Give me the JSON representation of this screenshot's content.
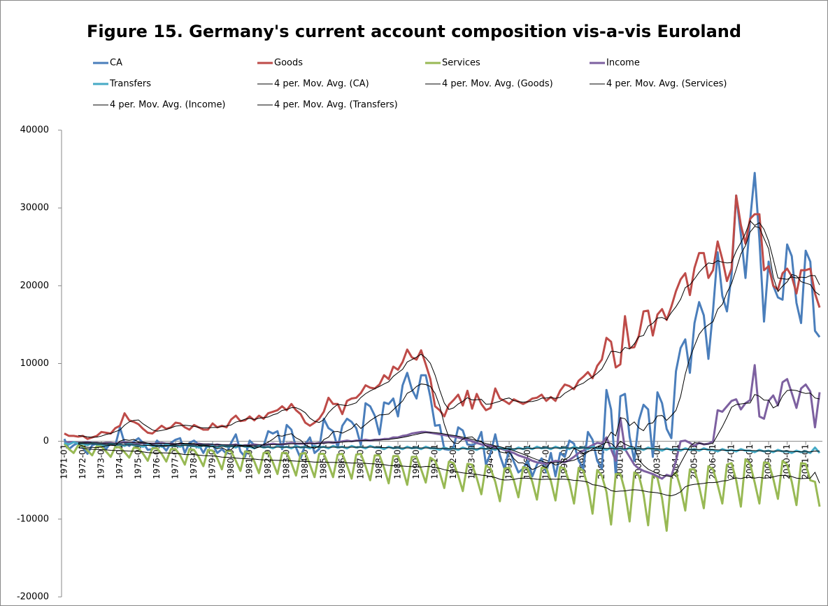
{
  "chart_data": {
    "type": "line",
    "title": "Figure 15. Germany's current account composition vis-a-vis Euroland",
    "categories": [
      "1971-01",
      null,
      null,
      null,
      "1972-01",
      null,
      null,
      null,
      "1973-01",
      null,
      null,
      null,
      "1974-01",
      null,
      null,
      null,
      "1975-01",
      null,
      null,
      null,
      "1976-01",
      null,
      null,
      null,
      "1977-01",
      null,
      null,
      null,
      "1978-01",
      null,
      null,
      null,
      "1979-01",
      null,
      null,
      null,
      "1980-01",
      null,
      null,
      null,
      "1981-01",
      null,
      null,
      null,
      "1982-01",
      null,
      null,
      null,
      "1983-01",
      null,
      null,
      null,
      "1984-01",
      null,
      null,
      null,
      "1985-01",
      null,
      null,
      null,
      "1986-01",
      null,
      null,
      null,
      "1987-01",
      null,
      null,
      null,
      "1988-01",
      null,
      null,
      null,
      "1989-01",
      null,
      null,
      null,
      "1990-01",
      null,
      null,
      null,
      "1991-01",
      null,
      null,
      null,
      "1992-01",
      null,
      null,
      null,
      "1993-01",
      null,
      null,
      null,
      "1994-01",
      null,
      null,
      null,
      "1995-01",
      null,
      null,
      null,
      "1996-01",
      null,
      null,
      null,
      "1997-01",
      null,
      null,
      null,
      "1998-01",
      null,
      null,
      null,
      "1999-01",
      null,
      null,
      null,
      "2000-01",
      null,
      null,
      null,
      "2001-01",
      null,
      null,
      null,
      "2002-01",
      null,
      null,
      null,
      "2003-01",
      null,
      null,
      null,
      "2004-01",
      null,
      null,
      null,
      "2005-01",
      null,
      null,
      null,
      "2006-01",
      null,
      null,
      null,
      "2007-01",
      null,
      null,
      null,
      "2008-01",
      null,
      null,
      null,
      "2009-01",
      null,
      null,
      null,
      "2010-01",
      null,
      null,
      null,
      "2011-01",
      null,
      null,
      null
    ],
    "series": [
      {
        "name": "CA",
        "color": "#4a7ebb",
        "values": [
          300,
          -1000,
          -500,
          -200,
          -800,
          -1600,
          -500,
          -300,
          -500,
          -1000,
          -200,
          -500,
          1800,
          -200,
          -600,
          0,
          400,
          -200,
          -1100,
          -1000,
          100,
          -500,
          -1200,
          -200,
          200,
          400,
          -1500,
          -200,
          100,
          -400,
          -1500,
          -400,
          -400,
          -1500,
          -1000,
          -1600,
          -200,
          900,
          -1300,
          -2000,
          100,
          -500,
          -600,
          -600,
          1300,
          1000,
          1300,
          -1000,
          2100,
          1500,
          -800,
          -2200,
          -400,
          500,
          -1500,
          -1000,
          2900,
          1700,
          1300,
          -800,
          2000,
          2900,
          2500,
          1700,
          -500,
          4900,
          4500,
          3300,
          900,
          5000,
          4800,
          5500,
          3200,
          7200,
          8800,
          6700,
          5500,
          8500,
          8500,
          5700,
          2000,
          2100,
          -1000,
          -1100,
          -800,
          1800,
          1400,
          -400,
          -500,
          -200,
          1200,
          -3000,
          -1500,
          900,
          -1800,
          -3500,
          -1000,
          -2600,
          -4000,
          -3500,
          -2500,
          -4500,
          -3000,
          -2200,
          -4000,
          -1500,
          -4500,
          -1500,
          -2000,
          100,
          -300,
          -2500,
          -3500,
          1200,
          200,
          -2500,
          -3500,
          6600,
          4100,
          -4400,
          5800,
          6100,
          600,
          -2500,
          2700,
          4700,
          4100,
          -2000,
          6300,
          4900,
          1600,
          400,
          9000,
          12000,
          13100,
          8800,
          15200,
          17900,
          16200,
          10600,
          16800,
          24300,
          18700,
          16700,
          21400,
          31600,
          26600,
          21000,
          28400,
          34500,
          26000,
          15400,
          23100,
          20000,
          18500,
          18200,
          25300,
          23800,
          17800,
          15200,
          24500,
          23100,
          14200,
          13400
        ]
      },
      {
        "name": "Goods",
        "color": "#be4b48",
        "values": [
          1000,
          700,
          700,
          600,
          700,
          300,
          500,
          700,
          1200,
          1100,
          1000,
          1700,
          2000,
          3600,
          2700,
          2500,
          2200,
          1600,
          1100,
          1000,
          1500,
          2000,
          1600,
          1800,
          2400,
          2300,
          1800,
          1500,
          2100,
          1800,
          1500,
          1500,
          2300,
          1800,
          2000,
          1800,
          2800,
          3300,
          2600,
          2700,
          3200,
          2700,
          3300,
          2900,
          3600,
          3800,
          4000,
          4500,
          4000,
          4800,
          4000,
          3500,
          2400,
          2000,
          2400,
          2900,
          3800,
          5600,
          4800,
          4800,
          3500,
          5200,
          5500,
          5600,
          6200,
          7200,
          6900,
          6800,
          7300,
          8500,
          8000,
          9600,
          9200,
          10200,
          11800,
          10800,
          10500,
          11700,
          9900,
          8000,
          4500,
          4000,
          3200,
          4700,
          5300,
          6000,
          4600,
          6500,
          4200,
          6100,
          4800,
          4000,
          4300,
          6800,
          5500,
          5200,
          4800,
          5400,
          5100,
          4800,
          5100,
          5500,
          5600,
          6000,
          5200,
          5700,
          5200,
          6500,
          7300,
          7100,
          6700,
          7800,
          8300,
          8900,
          8100,
          9700,
          10500,
          13300,
          12800,
          9500,
          9900,
          16100,
          12000,
          12100,
          13600,
          16700,
          16800,
          13600,
          16300,
          17000,
          15600,
          17300,
          19300,
          20800,
          21600,
          18800,
          22300,
          24200,
          24200,
          21000,
          22000,
          25700,
          23400,
          20600,
          22200,
          31600,
          27800,
          25400,
          28600,
          29200,
          29200,
          22000,
          22500,
          20000,
          19500,
          21600,
          22200,
          21200,
          19000,
          22000,
          22000,
          22200,
          19000,
          17200
        ]
      },
      {
        "name": "Services",
        "color": "#98b954",
        "values": [
          -300,
          -1000,
          -1500,
          -500,
          -600,
          -1200,
          -1800,
          -600,
          -700,
          -1300,
          -2000,
          -700,
          -800,
          -1400,
          -2100,
          -800,
          -900,
          -1600,
          -2500,
          -900,
          -900,
          -1600,
          -2600,
          -1000,
          -1000,
          -1800,
          -3000,
          -1000,
          -1100,
          -2000,
          -3200,
          -1100,
          -1200,
          -2200,
          -3600,
          -1200,
          -1300,
          -2500,
          -3800,
          -1300,
          -1400,
          -2600,
          -4100,
          -1500,
          -1400,
          -2700,
          -4200,
          -1500,
          -1500,
          -2800,
          -4400,
          -1600,
          -1500,
          -3000,
          -4600,
          -1600,
          -1600,
          -3000,
          -4600,
          -1700,
          -1600,
          -3100,
          -4800,
          -1700,
          -1600,
          -3200,
          -5000,
          -1800,
          -1800,
          -3400,
          -5400,
          -1900,
          -1900,
          -3500,
          -5600,
          -2000,
          -2000,
          -3600,
          -5300,
          -2100,
          -2500,
          -4000,
          -6000,
          -2600,
          -2800,
          -4400,
          -6400,
          -2900,
          -3000,
          -4700,
          -6800,
          -3100,
          -3500,
          -5200,
          -7700,
          -3500,
          -3400,
          -5000,
          -7200,
          -3300,
          -3500,
          -5200,
          -7500,
          -3400,
          -3400,
          -5100,
          -7600,
          -3300,
          -3500,
          -5300,
          -8000,
          -3400,
          -3800,
          -5800,
          -9300,
          -3700,
          -4400,
          -6500,
          -10700,
          -4200,
          -4200,
          -6400,
          -10300,
          -4000,
          -4400,
          -6800,
          -10800,
          -4200,
          -4700,
          -7300,
          -11500,
          -4500,
          -4000,
          -6000,
          -8900,
          -3600,
          -3600,
          -5800,
          -8600,
          -3200,
          -3600,
          -5600,
          -8000,
          -3000,
          -2800,
          -5000,
          -8400,
          -2300,
          -2900,
          -5300,
          -8000,
          -2700,
          -2800,
          -4800,
          -7400,
          -2500,
          -3000,
          -5200,
          -8200,
          -2800,
          -2900,
          -5000,
          -5200,
          -8400
        ]
      },
      {
        "name": "Income",
        "color": "#7d60a0",
        "values": [
          -200,
          -100,
          -100,
          -200,
          -200,
          -100,
          -200,
          -200,
          -300,
          -200,
          -200,
          -300,
          -200,
          -100,
          -200,
          -200,
          -300,
          -200,
          -300,
          -300,
          -300,
          -200,
          -300,
          -300,
          -400,
          -300,
          -400,
          -400,
          -400,
          -300,
          -400,
          -400,
          -500,
          -400,
          -500,
          -500,
          -500,
          -400,
          -600,
          -500,
          -500,
          -400,
          -500,
          -500,
          -400,
          -300,
          -400,
          -400,
          -300,
          -200,
          -300,
          -300,
          -300,
          -200,
          -300,
          -200,
          -200,
          -100,
          -200,
          -100,
          0,
          100,
          0,
          100,
          100,
          200,
          100,
          200,
          200,
          300,
          300,
          500,
          500,
          700,
          800,
          1000,
          1100,
          1200,
          1200,
          1100,
          1000,
          900,
          800,
          700,
          600,
          500,
          300,
          200,
          0,
          -200,
          -400,
          -500,
          -600,
          -800,
          -900,
          -1100,
          -1300,
          -1500,
          -1800,
          -2000,
          -2200,
          -2500,
          -2700,
          -2800,
          -2900,
          -2700,
          -2500,
          -2600,
          -2700,
          -2400,
          -2000,
          -1500,
          -1200,
          -800,
          -500,
          -200,
          -300,
          500,
          -1000,
          -2500,
          3000,
          -1000,
          -2000,
          -3000,
          -3500,
          -3800,
          -4000,
          -4200,
          -4500,
          -4800,
          -4300,
          -4500,
          -2500,
          0,
          100,
          -200,
          -600,
          -200,
          -400,
          -300,
          0,
          4000,
          3800,
          4500,
          5200,
          5400,
          4100,
          4900,
          5300,
          9800,
          3200,
          2900,
          5200,
          5900,
          4600,
          7600,
          8000,
          6200,
          4300,
          6800,
          7300,
          6400,
          1800,
          6300
        ]
      },
      {
        "name": "Transfers",
        "color": "#46aac5",
        "values": [
          -200,
          -400,
          -100,
          -300,
          -300,
          -500,
          -200,
          -400,
          -400,
          -600,
          -300,
          -500,
          -400,
          -600,
          -300,
          -500,
          -500,
          -700,
          -400,
          -600,
          -500,
          -700,
          -400,
          -600,
          -500,
          -700,
          -400,
          -600,
          -600,
          -800,
          -500,
          -700,
          -600,
          -800,
          -500,
          -700,
          -600,
          -800,
          -500,
          -700,
          -700,
          -900,
          -600,
          -800,
          -700,
          -900,
          -600,
          -800,
          -700,
          -900,
          -600,
          -800,
          -700,
          -900,
          -600,
          -800,
          -700,
          -900,
          -600,
          -800,
          -700,
          -900,
          -600,
          -800,
          -700,
          -900,
          -600,
          -800,
          -800,
          -1000,
          -700,
          -900,
          -800,
          -1000,
          -700,
          -900,
          -800,
          -1000,
          -700,
          -900,
          -900,
          -1100,
          -800,
          -1000,
          -900,
          -1100,
          -800,
          -1000,
          -900,
          -1100,
          -800,
          -1000,
          -900,
          -1100,
          -800,
          -1000,
          -900,
          -1100,
          -800,
          -1000,
          -800,
          -1000,
          -700,
          -900,
          -800,
          -1000,
          -700,
          -900,
          -800,
          -1000,
          -700,
          -900,
          -800,
          -1000,
          -700,
          -900,
          -900,
          -1100,
          -800,
          -1000,
          -900,
          -1100,
          -800,
          -1000,
          -900,
          -1100,
          -800,
          -1000,
          -1000,
          -1200,
          -900,
          -1100,
          -1000,
          -1200,
          -900,
          -1100,
          -1000,
          -1200,
          -900,
          -1100,
          -1100,
          -1300,
          -1000,
          -1200,
          -1100,
          -1300,
          -1000,
          -1200,
          -1200,
          -1400,
          -1100,
          -1300,
          -1200,
          -1400,
          -1100,
          -1300,
          -1300,
          -1500,
          -1200,
          -1400,
          -1300,
          -1500,
          -800,
          -1500
        ]
      }
    ],
    "trendlines": [
      {
        "name": "4 per. Mov. Avg. (CA)",
        "series": 0,
        "period": 4,
        "color": "#000000"
      },
      {
        "name": "4 per. Mov. Avg. (Goods)",
        "series": 1,
        "period": 4,
        "color": "#000000"
      },
      {
        "name": "4 per. Mov. Avg. (Services)",
        "series": 2,
        "period": 4,
        "color": "#000000"
      },
      {
        "name": "4 per. Mov. Avg. (Income)",
        "series": 3,
        "period": 4,
        "color": "#000000"
      },
      {
        "name": "4 per. Mov. Avg. (Transfers)",
        "series": 4,
        "period": 4,
        "color": "#000000"
      }
    ],
    "ylim": [
      -20000,
      40000
    ],
    "yticks": [
      -20000,
      -10000,
      0,
      10000,
      20000,
      30000,
      40000
    ],
    "grid": false,
    "legend": "top"
  }
}
